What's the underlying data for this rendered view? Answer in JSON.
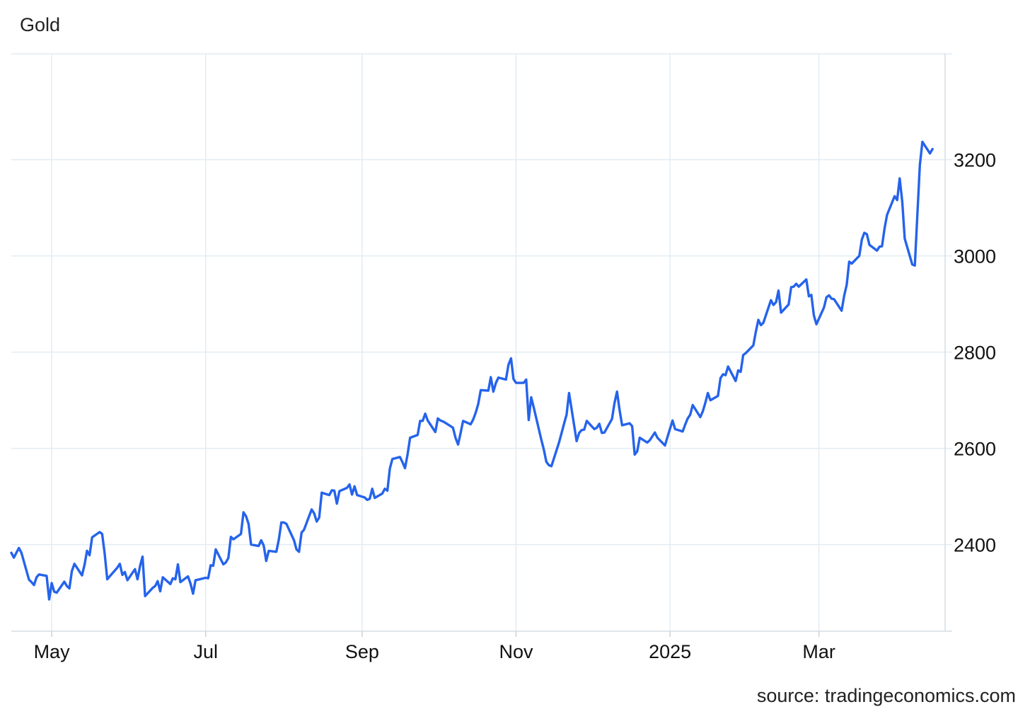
{
  "chart_data": {
    "type": "line",
    "title": "Gold",
    "source": "source: tradingeconomics.com",
    "xlabel": "",
    "ylabel": "",
    "grid": true,
    "line_color": "#2563eb",
    "grid_color": "#e3ecf2",
    "ylim": [
      2220,
      3420
    ],
    "y_ticks": [
      2400,
      2600,
      2800,
      3000,
      3200
    ],
    "x_range": [
      "2024-04-15",
      "2025-04-20"
    ],
    "x_ticks": [
      {
        "date": "2024-05-01",
        "label": "May"
      },
      {
        "date": "2024-07-01",
        "label": "Jul"
      },
      {
        "date": "2024-09-01",
        "label": "Sep"
      },
      {
        "date": "2024-11-01",
        "label": "Nov"
      },
      {
        "date": "2025-01-01",
        "label": "2025"
      },
      {
        "date": "2025-03-01",
        "label": "Mar"
      }
    ],
    "series": [
      {
        "values": [
          [
            "2024-04-15",
            2383
          ],
          [
            "2024-04-16",
            2373
          ],
          [
            "2024-04-18",
            2393
          ],
          [
            "2024-04-19",
            2383
          ],
          [
            "2024-04-22",
            2327
          ],
          [
            "2024-04-23",
            2322
          ],
          [
            "2024-04-24",
            2316
          ],
          [
            "2024-04-25",
            2332
          ],
          [
            "2024-04-26",
            2338
          ],
          [
            "2024-04-29",
            2335
          ],
          [
            "2024-04-30",
            2286
          ],
          [
            "2024-05-01",
            2320
          ],
          [
            "2024-05-02",
            2302
          ],
          [
            "2024-05-03",
            2300
          ],
          [
            "2024-05-06",
            2323
          ],
          [
            "2024-05-07",
            2314
          ],
          [
            "2024-05-08",
            2309
          ],
          [
            "2024-05-09",
            2345
          ],
          [
            "2024-05-10",
            2360
          ],
          [
            "2024-05-13",
            2336
          ],
          [
            "2024-05-14",
            2358
          ],
          [
            "2024-05-15",
            2387
          ],
          [
            "2024-05-16",
            2378
          ],
          [
            "2024-05-17",
            2415
          ],
          [
            "2024-05-20",
            2426
          ],
          [
            "2024-05-21",
            2422
          ],
          [
            "2024-05-22",
            2381
          ],
          [
            "2024-05-23",
            2328
          ],
          [
            "2024-05-24",
            2334
          ],
          [
            "2024-05-27",
            2352
          ],
          [
            "2024-05-28",
            2360
          ],
          [
            "2024-05-29",
            2337
          ],
          [
            "2024-05-30",
            2343
          ],
          [
            "2024-05-31",
            2326
          ],
          [
            "2024-06-03",
            2349
          ],
          [
            "2024-06-04",
            2328
          ],
          [
            "2024-06-05",
            2355
          ],
          [
            "2024-06-06",
            2375
          ],
          [
            "2024-06-07",
            2293
          ],
          [
            "2024-06-10",
            2310
          ],
          [
            "2024-06-11",
            2314
          ],
          [
            "2024-06-12",
            2324
          ],
          [
            "2024-06-13",
            2303
          ],
          [
            "2024-06-14",
            2332
          ],
          [
            "2024-06-17",
            2318
          ],
          [
            "2024-06-18",
            2330
          ],
          [
            "2024-06-19",
            2328
          ],
          [
            "2024-06-20",
            2359
          ],
          [
            "2024-06-21",
            2322
          ],
          [
            "2024-06-24",
            2334
          ],
          [
            "2024-06-25",
            2319
          ],
          [
            "2024-06-26",
            2298
          ],
          [
            "2024-06-27",
            2326
          ],
          [
            "2024-06-28",
            2327
          ],
          [
            "2024-07-01",
            2331
          ],
          [
            "2024-07-02",
            2330
          ],
          [
            "2024-07-03",
            2357
          ],
          [
            "2024-07-04",
            2356
          ],
          [
            "2024-07-05",
            2390
          ],
          [
            "2024-07-08",
            2359
          ],
          [
            "2024-07-09",
            2363
          ],
          [
            "2024-07-10",
            2372
          ],
          [
            "2024-07-11",
            2416
          ],
          [
            "2024-07-12",
            2411
          ],
          [
            "2024-07-15",
            2422
          ],
          [
            "2024-07-16",
            2467
          ],
          [
            "2024-07-17",
            2459
          ],
          [
            "2024-07-18",
            2443
          ],
          [
            "2024-07-19",
            2400
          ],
          [
            "2024-07-22",
            2397
          ],
          [
            "2024-07-23",
            2409
          ],
          [
            "2024-07-24",
            2398
          ],
          [
            "2024-07-25",
            2366
          ],
          [
            "2024-07-26",
            2387
          ],
          [
            "2024-07-29",
            2385
          ],
          [
            "2024-07-30",
            2411
          ],
          [
            "2024-07-31",
            2446
          ],
          [
            "2024-08-01",
            2446
          ],
          [
            "2024-08-02",
            2443
          ],
          [
            "2024-08-05",
            2409
          ],
          [
            "2024-08-06",
            2390
          ],
          [
            "2024-08-07",
            2385
          ],
          [
            "2024-08-08",
            2425
          ],
          [
            "2024-08-09",
            2431
          ],
          [
            "2024-08-12",
            2473
          ],
          [
            "2024-08-13",
            2465
          ],
          [
            "2024-08-14",
            2448
          ],
          [
            "2024-08-15",
            2456
          ],
          [
            "2024-08-16",
            2508
          ],
          [
            "2024-08-19",
            2503
          ],
          [
            "2024-08-20",
            2513
          ],
          [
            "2024-08-21",
            2512
          ],
          [
            "2024-08-22",
            2485
          ],
          [
            "2024-08-23",
            2511
          ],
          [
            "2024-08-26",
            2518
          ],
          [
            "2024-08-27",
            2525
          ],
          [
            "2024-08-28",
            2504
          ],
          [
            "2024-08-29",
            2521
          ],
          [
            "2024-08-30",
            2503
          ],
          [
            "2024-09-02",
            2498
          ],
          [
            "2024-09-03",
            2493
          ],
          [
            "2024-09-04",
            2495
          ],
          [
            "2024-09-05",
            2516
          ],
          [
            "2024-09-06",
            2497
          ],
          [
            "2024-09-09",
            2506
          ],
          [
            "2024-09-10",
            2516
          ],
          [
            "2024-09-11",
            2512
          ],
          [
            "2024-09-12",
            2558
          ],
          [
            "2024-09-13",
            2578
          ],
          [
            "2024-09-16",
            2582
          ],
          [
            "2024-09-17",
            2571
          ],
          [
            "2024-09-18",
            2559
          ],
          [
            "2024-09-19",
            2587
          ],
          [
            "2024-09-20",
            2622
          ],
          [
            "2024-09-23",
            2628
          ],
          [
            "2024-09-24",
            2657
          ],
          [
            "2024-09-25",
            2657
          ],
          [
            "2024-09-26",
            2672
          ],
          [
            "2024-09-27",
            2658
          ],
          [
            "2024-09-30",
            2634
          ],
          [
            "2024-10-01",
            2662
          ],
          [
            "2024-10-02",
            2658
          ],
          [
            "2024-10-03",
            2656
          ],
          [
            "2024-10-04",
            2653
          ],
          [
            "2024-10-07",
            2643
          ],
          [
            "2024-10-08",
            2622
          ],
          [
            "2024-10-09",
            2608
          ],
          [
            "2024-10-10",
            2631
          ],
          [
            "2024-10-11",
            2657
          ],
          [
            "2024-10-14",
            2650
          ],
          [
            "2024-10-15",
            2660
          ],
          [
            "2024-10-16",
            2674
          ],
          [
            "2024-10-17",
            2692
          ],
          [
            "2024-10-18",
            2721
          ],
          [
            "2024-10-21",
            2720
          ],
          [
            "2024-10-22",
            2748
          ],
          [
            "2024-10-23",
            2718
          ],
          [
            "2024-10-24",
            2736
          ],
          [
            "2024-10-25",
            2747
          ],
          [
            "2024-10-28",
            2743
          ],
          [
            "2024-10-29",
            2774
          ],
          [
            "2024-10-30",
            2787
          ],
          [
            "2024-10-31",
            2744
          ],
          [
            "2024-11-01",
            2736
          ],
          [
            "2024-11-04",
            2736
          ],
          [
            "2024-11-05",
            2743
          ],
          [
            "2024-11-06",
            2659
          ],
          [
            "2024-11-07",
            2706
          ],
          [
            "2024-11-08",
            2685
          ],
          [
            "2024-11-11",
            2618
          ],
          [
            "2024-11-12",
            2597
          ],
          [
            "2024-11-13",
            2572
          ],
          [
            "2024-11-14",
            2565
          ],
          [
            "2024-11-15",
            2563
          ],
          [
            "2024-11-18",
            2612
          ],
          [
            "2024-11-19",
            2631
          ],
          [
            "2024-11-20",
            2651
          ],
          [
            "2024-11-21",
            2670
          ],
          [
            "2024-11-22",
            2715
          ],
          [
            "2024-11-25",
            2615
          ],
          [
            "2024-11-26",
            2632
          ],
          [
            "2024-11-27",
            2638
          ],
          [
            "2024-11-28",
            2639
          ],
          [
            "2024-11-29",
            2657
          ],
          [
            "2024-12-02",
            2640
          ],
          [
            "2024-12-03",
            2643
          ],
          [
            "2024-12-04",
            2651
          ],
          [
            "2024-12-05",
            2632
          ],
          [
            "2024-12-06",
            2633
          ],
          [
            "2024-12-09",
            2661
          ],
          [
            "2024-12-10",
            2694
          ],
          [
            "2024-12-11",
            2718
          ],
          [
            "2024-12-12",
            2680
          ],
          [
            "2024-12-13",
            2648
          ],
          [
            "2024-12-16",
            2652
          ],
          [
            "2024-12-17",
            2646
          ],
          [
            "2024-12-18",
            2587
          ],
          [
            "2024-12-19",
            2594
          ],
          [
            "2024-12-20",
            2622
          ],
          [
            "2024-12-23",
            2612
          ],
          [
            "2024-12-24",
            2617
          ],
          [
            "2024-12-26",
            2633
          ],
          [
            "2024-12-27",
            2622
          ],
          [
            "2024-12-30",
            2606
          ],
          [
            "2024-12-31",
            2624
          ],
          [
            "2025-01-02",
            2658
          ],
          [
            "2025-01-03",
            2640
          ],
          [
            "2025-01-06",
            2635
          ],
          [
            "2025-01-07",
            2649
          ],
          [
            "2025-01-08",
            2662
          ],
          [
            "2025-01-09",
            2670
          ],
          [
            "2025-01-10",
            2690
          ],
          [
            "2025-01-13",
            2665
          ],
          [
            "2025-01-14",
            2677
          ],
          [
            "2025-01-15",
            2695
          ],
          [
            "2025-01-16",
            2715
          ],
          [
            "2025-01-17",
            2700
          ],
          [
            "2025-01-20",
            2709
          ],
          [
            "2025-01-21",
            2746
          ],
          [
            "2025-01-22",
            2754
          ],
          [
            "2025-01-23",
            2752
          ],
          [
            "2025-01-24",
            2770
          ],
          [
            "2025-01-27",
            2740
          ],
          [
            "2025-01-28",
            2762
          ],
          [
            "2025-01-29",
            2759
          ],
          [
            "2025-01-30",
            2794
          ],
          [
            "2025-01-31",
            2798
          ],
          [
            "2025-02-03",
            2814
          ],
          [
            "2025-02-04",
            2842
          ],
          [
            "2025-02-05",
            2867
          ],
          [
            "2025-02-06",
            2856
          ],
          [
            "2025-02-07",
            2861
          ],
          [
            "2025-02-10",
            2908
          ],
          [
            "2025-02-11",
            2898
          ],
          [
            "2025-02-12",
            2904
          ],
          [
            "2025-02-13",
            2928
          ],
          [
            "2025-02-14",
            2882
          ],
          [
            "2025-02-17",
            2899
          ],
          [
            "2025-02-18",
            2935
          ],
          [
            "2025-02-19",
            2936
          ],
          [
            "2025-02-20",
            2942
          ],
          [
            "2025-02-21",
            2936
          ],
          [
            "2025-02-24",
            2951
          ],
          [
            "2025-02-25",
            2916
          ],
          [
            "2025-02-26",
            2919
          ],
          [
            "2025-02-27",
            2876
          ],
          [
            "2025-02-28",
            2858
          ],
          [
            "2025-03-03",
            2893
          ],
          [
            "2025-03-04",
            2914
          ],
          [
            "2025-03-05",
            2918
          ],
          [
            "2025-03-06",
            2911
          ],
          [
            "2025-03-07",
            2910
          ],
          [
            "2025-03-10",
            2886
          ],
          [
            "2025-03-11",
            2917
          ],
          [
            "2025-03-12",
            2940
          ],
          [
            "2025-03-13",
            2988
          ],
          [
            "2025-03-14",
            2984
          ],
          [
            "2025-03-17",
            3000
          ],
          [
            "2025-03-18",
            3034
          ],
          [
            "2025-03-19",
            3048
          ],
          [
            "2025-03-20",
            3045
          ],
          [
            "2025-03-21",
            3023
          ],
          [
            "2025-03-24",
            3011
          ],
          [
            "2025-03-25",
            3019
          ],
          [
            "2025-03-26",
            3020
          ],
          [
            "2025-03-27",
            3057
          ],
          [
            "2025-03-28",
            3085
          ],
          [
            "2025-03-31",
            3124
          ],
          [
            "2025-04-01",
            3116
          ],
          [
            "2025-04-02",
            3161
          ],
          [
            "2025-04-03",
            3113
          ],
          [
            "2025-04-04",
            3036
          ],
          [
            "2025-04-07",
            2982
          ],
          [
            "2025-04-08",
            2980
          ],
          [
            "2025-04-10",
            3189
          ],
          [
            "2025-04-11",
            3237
          ],
          [
            "2025-04-14",
            3213
          ],
          [
            "2025-04-15",
            3222
          ]
        ]
      }
    ]
  }
}
